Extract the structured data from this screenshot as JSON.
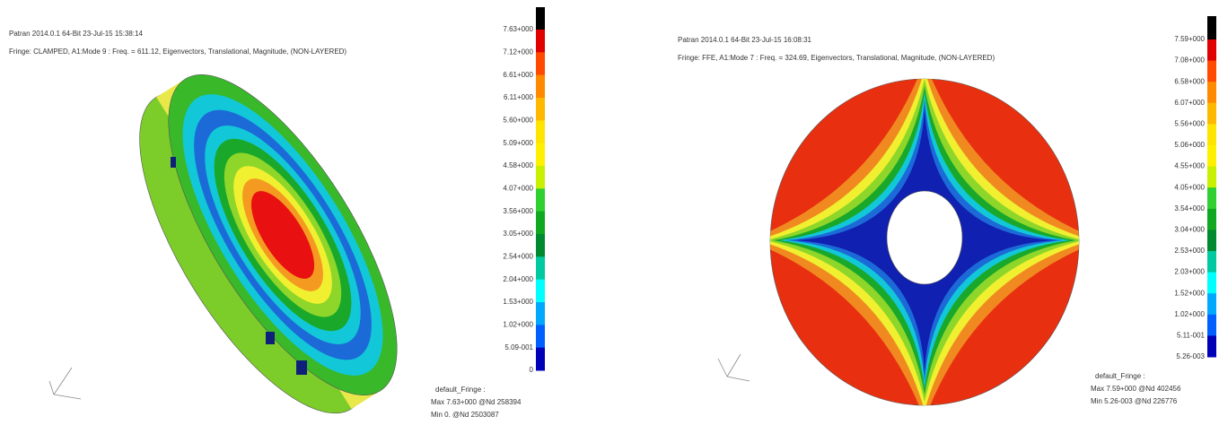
{
  "panels": [
    {
      "header": [
        "Patran 2014.0.1 64-Bit 23-Jul-15 15:38:14",
        "Fringe: CLAMPED, A1:Mode 9 : Freq. = 611.12, Eigenvectors, Translational, Magnitude, (NON-LAYERED)"
      ],
      "legend": [
        "7.63+000",
        "7.12+000",
        "6.61+000",
        "6.11+000",
        "5.60+000",
        "5.09+000",
        "4.58+000",
        "4.07+000",
        "3.56+000",
        "3.05+000",
        "2.54+000",
        "2.04+000",
        "1.53+000",
        "1.02+000",
        "5.09-001",
        "0"
      ],
      "footer": [
        "default_Fringe :",
        "Max 7.63+000 @Nd 258394",
        "Min 0. @Nd 2503087"
      ]
    },
    {
      "header": [
        "Patran 2014.0.1 64-Bit 23-Jul-15 16:08:31",
        "Fringe: FFE, A1:Mode 7 : Freq. = 324.69, Eigenvectors, Translational, Magnitude, (NON-LAYERED)"
      ],
      "legend": [
        "7.59+000",
        "7.08+000",
        "6.58+000",
        "6.07+000",
        "5.56+000",
        "5.06+000",
        "4.55+000",
        "4.05+000",
        "3.54+000",
        "3.04+000",
        "2.53+000",
        "2.03+000",
        "1.52+000",
        "1.02+000",
        "5.11-001",
        "5.26-003"
      ],
      "footer": [
        "default_Fringe :",
        "Max 7.59+000 @Nd 402456",
        "Min 5.26-003 @Nd 226776"
      ]
    }
  ]
}
